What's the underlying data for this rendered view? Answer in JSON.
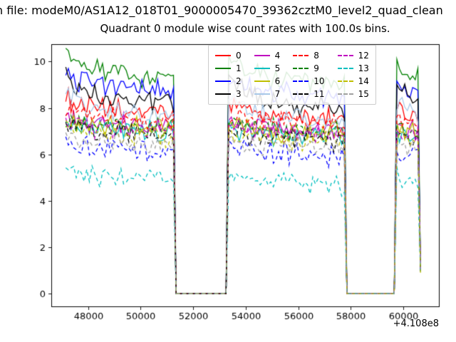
{
  "figure": {
    "suptitle": "n file: modeM0/AS1A12_018T01_9000005470_39362cztM0_level2_quad_clean",
    "title": "Quadrant 0 module wise count rates with 100.0s bins.",
    "offset_text": "+4.108e8"
  },
  "chart_data": {
    "type": "line",
    "title": "Quadrant 0 module wise count rates with 100.0s bins.",
    "xlabel": "",
    "ylabel": "",
    "grid": false,
    "legend_position": "upper center",
    "legend_ncol": 4,
    "x_offset_label": "+4.108e8",
    "xlim": [
      46600,
      61350
    ],
    "ylim": [
      -0.55,
      10.75
    ],
    "xticks": [
      48000,
      50000,
      52000,
      54000,
      56000,
      58000,
      60000
    ],
    "yticks": [
      0,
      2,
      4,
      6,
      8,
      10
    ],
    "bin_seconds": 100,
    "x_start": 47150,
    "x_end": 60650,
    "on_intervals": [
      [
        47150,
        51250
      ],
      [
        53350,
        57750
      ],
      [
        59750,
        60650
      ]
    ],
    "gap_value": 0,
    "end_drop_value": 0.9,
    "recovery_decay": 800,
    "trend_drop": 0.45,
    "noise_amp": 0.28,
    "series": [
      {
        "name": "0",
        "color": "#ff0000",
        "dash": "solid",
        "mean": 7.9,
        "boost": 0.5
      },
      {
        "name": "1",
        "color": "#008000",
        "dash": "solid",
        "mean": 9.4,
        "boost": 1.0
      },
      {
        "name": "2",
        "color": "#0000ff",
        "dash": "solid",
        "mean": 8.9,
        "boost": 0.6
      },
      {
        "name": "3",
        "color": "#000000",
        "dash": "solid",
        "mean": 8.35,
        "boost": 1.2
      },
      {
        "name": "4",
        "color": "#bf00bf",
        "dash": "solid",
        "mean": 7.35,
        "boost": 0.3
      },
      {
        "name": "5",
        "color": "#00bfbf",
        "dash": "solid",
        "mean": 7.1,
        "boost": 0.3
      },
      {
        "name": "6",
        "color": "#bfbf00",
        "dash": "solid",
        "mean": 7.25,
        "boost": 0.3
      },
      {
        "name": "7",
        "color": "#a8c8e8",
        "dash": "solid",
        "mean": 7.8,
        "boost": 0.9
      },
      {
        "name": "8",
        "color": "#ff0000",
        "dash": "dashed",
        "mean": 7.6,
        "boost": 0.4
      },
      {
        "name": "9",
        "color": "#008000",
        "dash": "dashed",
        "mean": 7.3,
        "boost": 0.3
      },
      {
        "name": "10",
        "color": "#0000ff",
        "dash": "dashed",
        "mean": 6.25,
        "boost": 0.3
      },
      {
        "name": "11",
        "color": "#000000",
        "dash": "dashed",
        "mean": 7.0,
        "boost": 0.3
      },
      {
        "name": "12",
        "color": "#bf00bf",
        "dash": "dashed",
        "mean": 7.15,
        "boost": 0.3
      },
      {
        "name": "13",
        "color": "#00bfbf",
        "dash": "dashed",
        "mean": 5.05,
        "boost": 0.4
      },
      {
        "name": "14",
        "color": "#bfbf00",
        "dash": "dashed",
        "mean": 6.9,
        "boost": 0.3
      },
      {
        "name": "15",
        "color": "#a0a0a0",
        "dash": "dashed",
        "mean": 6.6,
        "boost": 0.3
      }
    ]
  }
}
